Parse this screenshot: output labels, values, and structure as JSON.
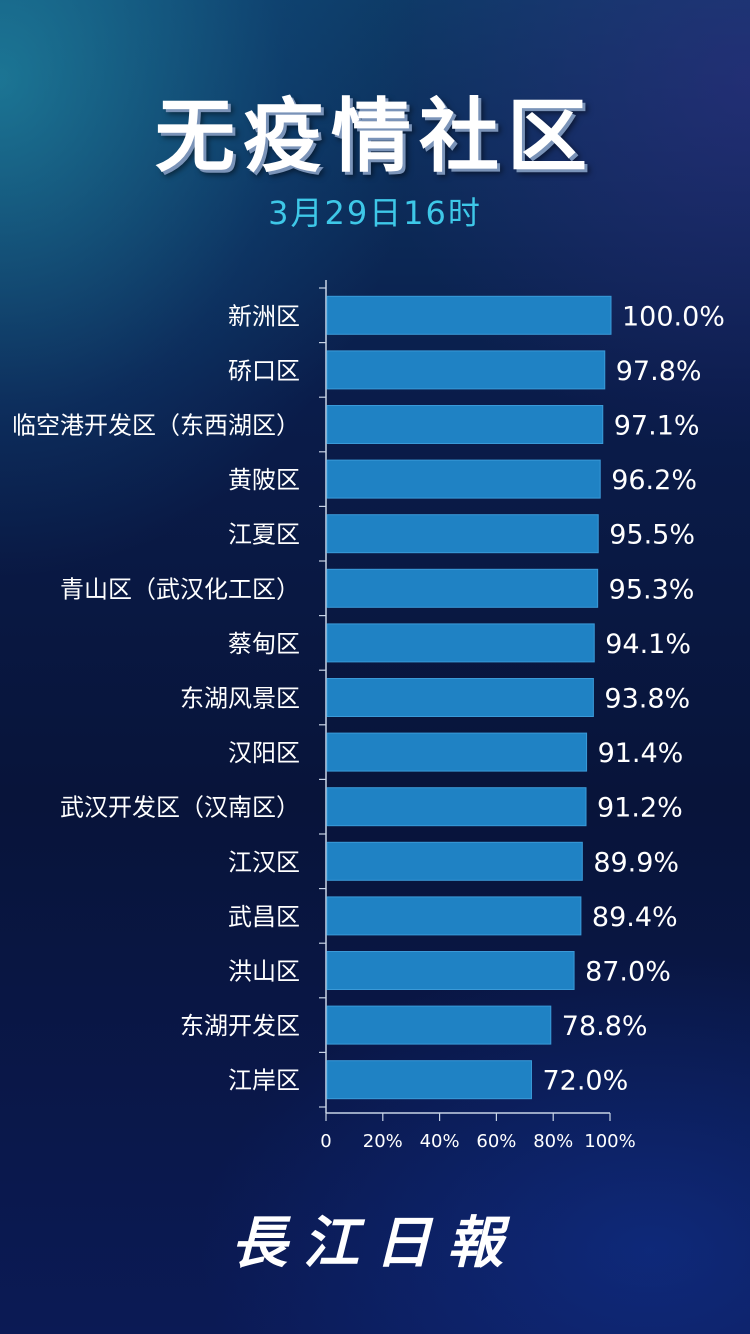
{
  "header": {
    "title": "无疫情社区",
    "subtitle": "3月29日16时"
  },
  "brand": {
    "text": "長江日報"
  },
  "colors": {
    "bar": "#1f82c4",
    "bar_edge": "#3a9ad8",
    "text": "#ffffff",
    "subtitle": "#3ec8e8",
    "axis": "#c8d4e6"
  },
  "chart_data": {
    "type": "bar",
    "orientation": "horizontal",
    "categories": [
      "新洲区",
      "硚口区",
      "临空港开发区（东西湖区）",
      "黄陂区",
      "江夏区",
      "青山区（武汉化工区）",
      "蔡甸区",
      "东湖风景区",
      "汉阳区",
      "武汉开发区（汉南区）",
      "江汉区",
      "武昌区",
      "洪山区",
      "东湖开发区",
      "江岸区"
    ],
    "values": [
      100.0,
      97.8,
      97.1,
      96.2,
      95.5,
      95.3,
      94.1,
      93.8,
      91.4,
      91.2,
      89.9,
      89.4,
      87.0,
      78.8,
      72.0
    ],
    "data_labels": [
      "100.0%",
      "97.8%",
      "97.1%",
      "96.2%",
      "95.5%",
      "95.3%",
      "94.1%",
      "93.8%",
      "91.4%",
      "91.2%",
      "89.9%",
      "89.4%",
      "87.0%",
      "78.8%",
      "72.0%"
    ],
    "xlim": [
      0,
      100
    ],
    "x_ticks": [
      0,
      20,
      40,
      60,
      80,
      100
    ],
    "x_tick_labels": [
      "0",
      "20%",
      "40%",
      "60%",
      "80%",
      "100%"
    ],
    "grid": false,
    "legend": "none"
  }
}
